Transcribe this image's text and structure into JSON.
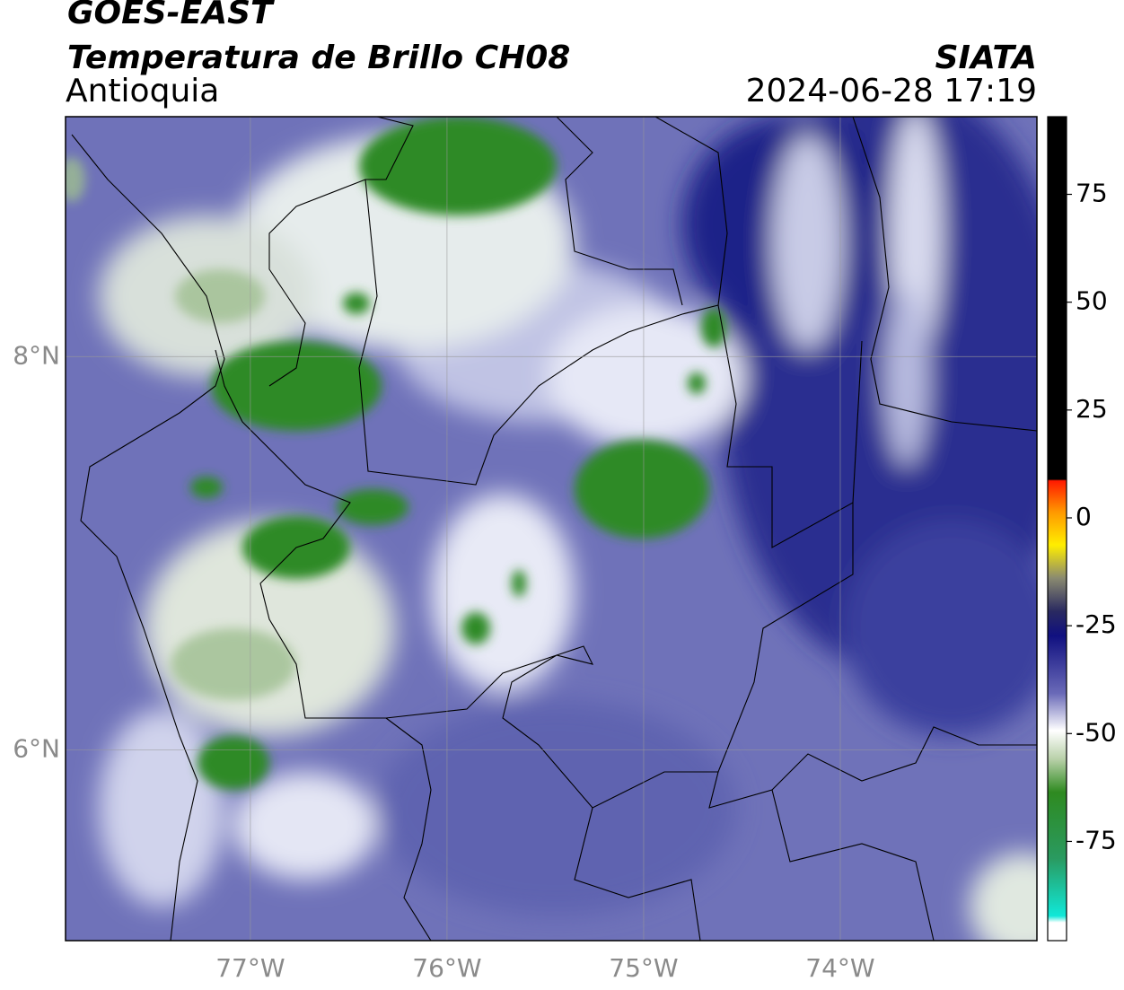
{
  "header": {
    "title": "GOES-EAST",
    "subtitle": "Temperatura de Brillo CH08",
    "region": "Antioquia",
    "source": "SIATA",
    "datetime": "2024-06-28 17:19"
  },
  "map": {
    "xlim": [
      -77.94,
      -73
    ],
    "ylim": [
      5.03,
      9.22
    ],
    "xticks": [
      {
        "value": -77,
        "label": "77°W"
      },
      {
        "value": -76,
        "label": "76°W"
      },
      {
        "value": -75,
        "label": "75°W"
      },
      {
        "value": -74,
        "label": "74°W"
      }
    ],
    "yticks": [
      {
        "value": 6,
        "label": "6°N"
      },
      {
        "value": 8,
        "label": "8°N"
      }
    ],
    "grid": true
  },
  "colorbar": {
    "lim": [
      -98,
      93
    ],
    "ticks": [
      -75,
      -50,
      -25,
      0,
      25,
      50,
      75
    ]
  }
}
